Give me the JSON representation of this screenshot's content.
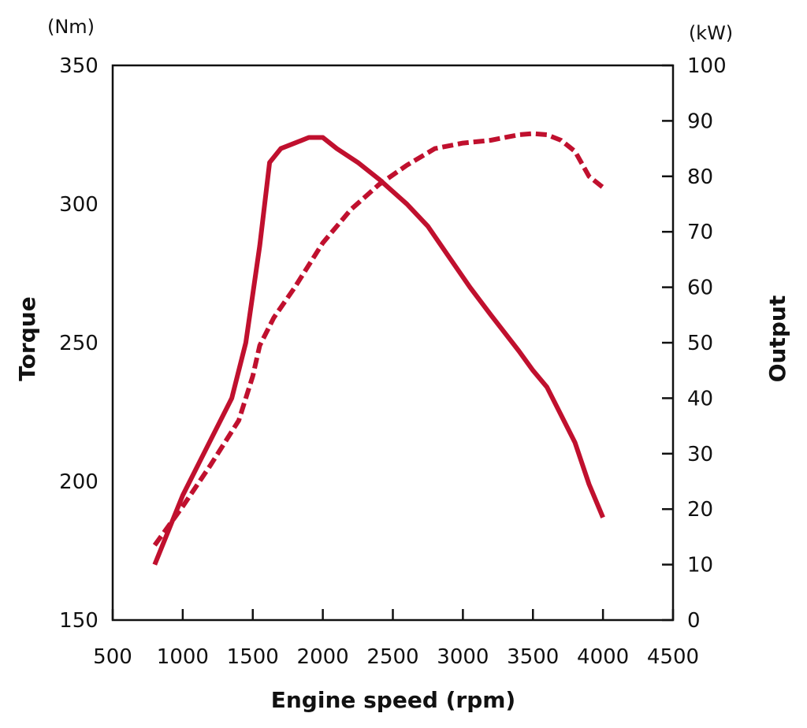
{
  "chart_data": {
    "type": "line",
    "xlabel": "Engine speed (rpm)",
    "xlim": [
      500,
      4500
    ],
    "x_ticks": [
      500,
      1000,
      1500,
      2000,
      2500,
      3000,
      3500,
      4000,
      4500
    ],
    "y_left": {
      "label": "Torque",
      "unit": "(Nm)",
      "lim": [
        150,
        350
      ],
      "ticks": [
        150,
        200,
        250,
        300,
        350
      ]
    },
    "y_right": {
      "label": "Output",
      "unit": "(kW)",
      "lim": [
        0,
        100
      ],
      "ticks": [
        0,
        10,
        20,
        30,
        40,
        50,
        60,
        70,
        80,
        90,
        100
      ]
    },
    "grid": false,
    "color": "#c0102e",
    "series": [
      {
        "axis": "left",
        "style": "solid",
        "points": [
          [
            800,
            170
          ],
          [
            1000,
            195
          ],
          [
            1200,
            215
          ],
          [
            1350,
            230
          ],
          [
            1450,
            250
          ],
          [
            1550,
            285
          ],
          [
            1620,
            315
          ],
          [
            1700,
            320
          ],
          [
            1800,
            322
          ],
          [
            1900,
            324
          ],
          [
            2000,
            324
          ],
          [
            2100,
            320
          ],
          [
            2250,
            315
          ],
          [
            2400,
            309
          ],
          [
            2600,
            300
          ],
          [
            2750,
            292
          ],
          [
            2900,
            281
          ],
          [
            3050,
            270
          ],
          [
            3200,
            260
          ],
          [
            3400,
            247
          ],
          [
            3500,
            240
          ],
          [
            3600,
            234
          ],
          [
            3700,
            224
          ],
          [
            3800,
            214
          ],
          [
            3900,
            199
          ],
          [
            4000,
            187
          ]
        ]
      },
      {
        "axis": "right",
        "style": "dashed",
        "points": [
          [
            800,
            13.5
          ],
          [
            1000,
            20.5
          ],
          [
            1200,
            28
          ],
          [
            1400,
            36
          ],
          [
            1500,
            44
          ],
          [
            1550,
            49.5
          ],
          [
            1650,
            54.5
          ],
          [
            1800,
            60
          ],
          [
            2000,
            68
          ],
          [
            2200,
            74
          ],
          [
            2400,
            78.5
          ],
          [
            2600,
            82
          ],
          [
            2800,
            85
          ],
          [
            3000,
            86
          ],
          [
            3200,
            86.5
          ],
          [
            3400,
            87.5
          ],
          [
            3500,
            87.7
          ],
          [
            3600,
            87.5
          ],
          [
            3700,
            86.5
          ],
          [
            3800,
            84.5
          ],
          [
            3900,
            80
          ],
          [
            4000,
            78
          ]
        ]
      }
    ]
  }
}
